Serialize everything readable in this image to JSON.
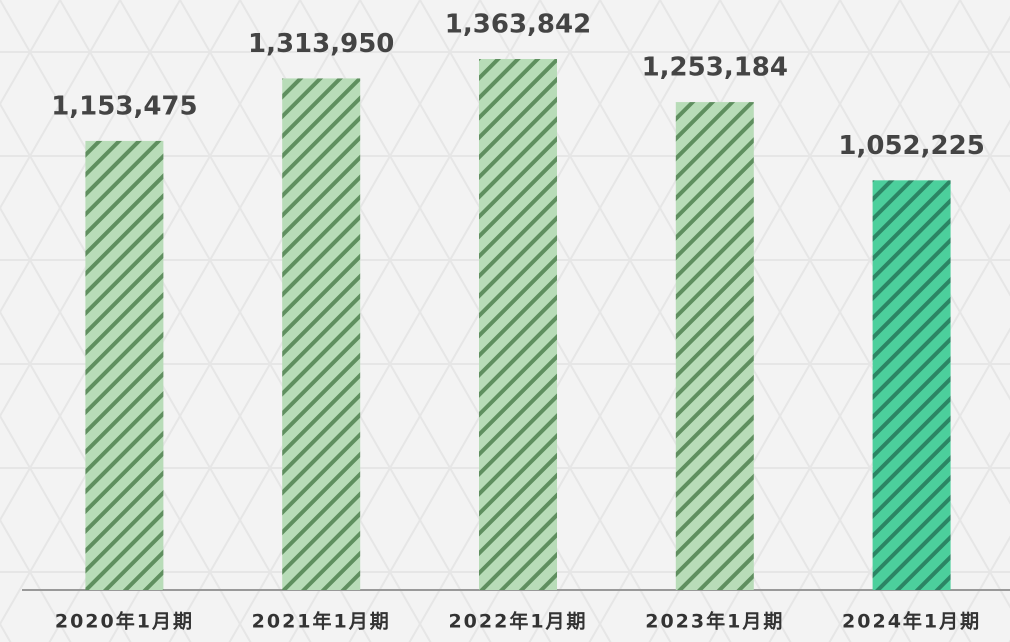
{
  "chart_data": {
    "type": "bar",
    "categories": [
      "2020年1月期",
      "2021年1月期",
      "2022年1月期",
      "2023年1月期",
      "2024年1月期"
    ],
    "values": [
      1153475,
      1313950,
      1363842,
      1253184,
      1052225
    ],
    "value_labels": [
      "1,153,475",
      "1,313,950",
      "1,363,842",
      "1,253,184",
      "1,052,225"
    ],
    "colors": [
      "#b8dcb8",
      "#b8dcb8",
      "#b8dcb8",
      "#b8dcb8",
      "#4ccf9c"
    ],
    "stripe_colors": [
      "#5f8f5f",
      "#5f8f5f",
      "#5f8f5f",
      "#5f8f5f",
      "#2b8564"
    ]
  }
}
